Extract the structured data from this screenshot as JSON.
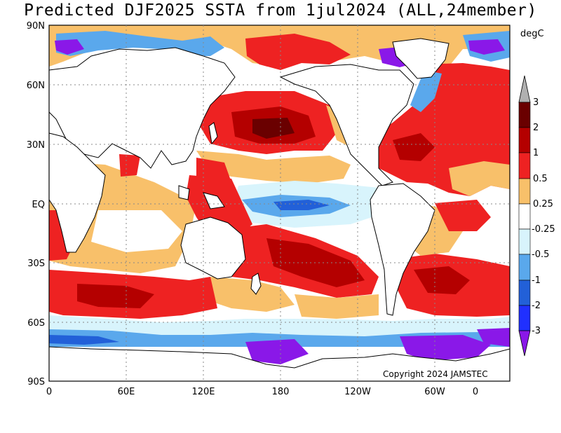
{
  "title": "Predicted DJF2025 SSTA from 1jul2024 (ALL,24member)",
  "units": "degC",
  "copyright": "Copyright 2024 JAMSTEC",
  "lat_labels": [
    "90N",
    "60N",
    "30N",
    "EQ",
    "30S",
    "60S",
    "90S"
  ],
  "lon_labels": [
    "0",
    "60E",
    "120E",
    "180",
    "120W",
    "60W",
    "0"
  ],
  "colorbar": {
    "labels": [
      "3",
      "2",
      "1",
      "0.5",
      "0.25",
      "-0.25",
      "-0.5",
      "-1",
      "-2",
      "-3"
    ],
    "colors": [
      "#b0b0b0",
      "#6a0000",
      "#b40000",
      "#ee2222",
      "#f8c06a",
      "#ffffff",
      "#d8f4fc",
      "#5aa8ec",
      "#2260d8",
      "#2030ff",
      "#8a18e8"
    ]
  },
  "colors": {
    "land": "#ffffff",
    "coast": "#000000"
  }
}
